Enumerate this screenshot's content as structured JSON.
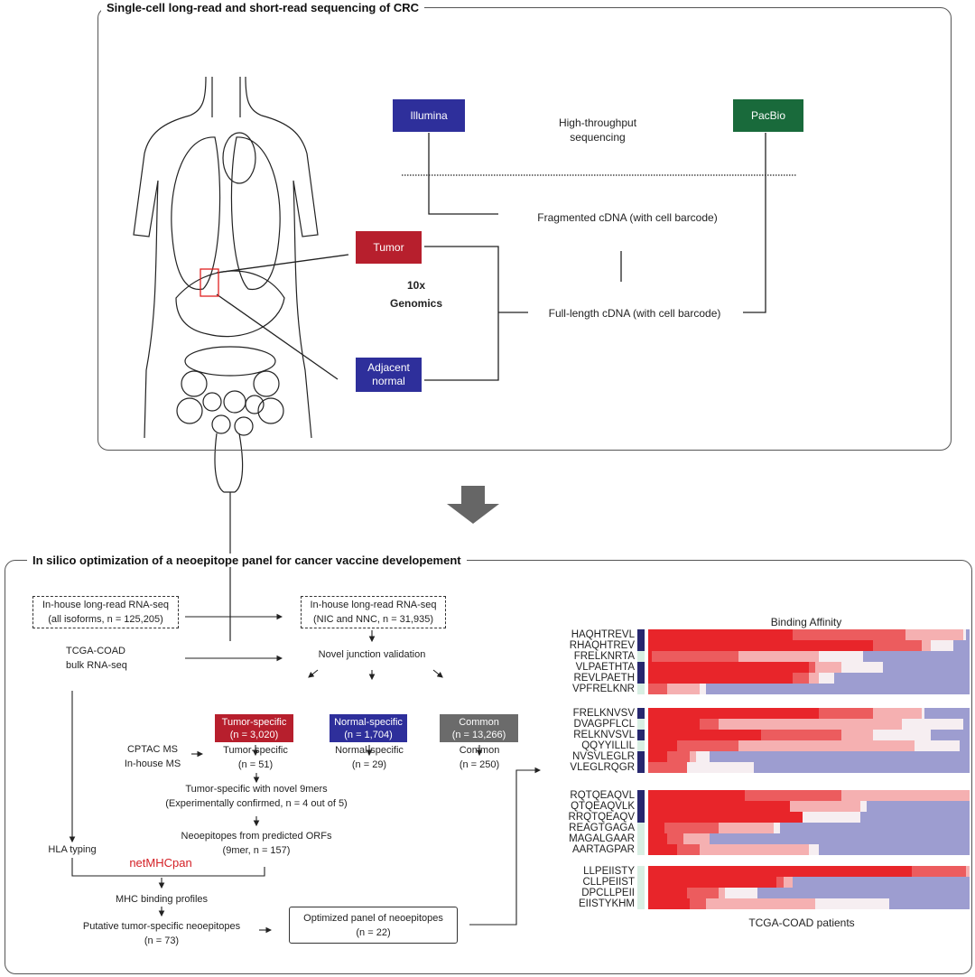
{
  "top_panel": {
    "title": "Single-cell long-read and short-read sequencing of CRC",
    "illumina": "Illumina",
    "pacbio": "PacBio",
    "htp_line1": "High-throughput",
    "htp_line2": "sequencing",
    "fragmented": "Fragmented cDNA (with cell barcode)",
    "fulllength": "Full-length cDNA (with cell barcode)",
    "tumor": "Tumor",
    "adjacent_line1": "Adjacent",
    "adjacent_line2": "normal",
    "genomics_line1": "10x",
    "genomics_line2": "Genomics"
  },
  "bottom_panel": {
    "title": "In silico optimization of a neoepitope panel for cancer vaccine developement",
    "box1": {
      "line1": "In-house long-read RNA-seq",
      "line2": "(all isoforms, n = 125,205)"
    },
    "box2": {
      "line1": "In-house long-read RNA-seq",
      "line2": "(NIC and NNC, n = 31,935)"
    },
    "tcga": {
      "line1": "TCGA-COAD",
      "line2": "bulk RNA-seq"
    },
    "novel_junction": "Novel junction validation",
    "tumor_box": {
      "line1": "Tumor-specific",
      "line2": "(n = 3,020)"
    },
    "normal_box": {
      "line1": "Normal-specific",
      "line2": "(n = 1,704)"
    },
    "common_box": {
      "line1": "Common",
      "line2": "(n = 13,266)"
    },
    "cptac": {
      "line1": "CPTAC MS",
      "line2": "In-house MS"
    },
    "tumor51": {
      "line1": "Tumor-specific",
      "line2": "(n = 51)"
    },
    "normal29": {
      "line1": "Normal-specific",
      "line2": "(n = 29)"
    },
    "common250": {
      "line1": "Common",
      "line2": "(n = 250)"
    },
    "novel9mers": {
      "line1": "Tumor-specific with novel 9mers",
      "line2": "(Experimentally confirmed, n = 4 out of 5)"
    },
    "neoepitopes": {
      "line1": "Neoepitopes from predicted ORFs",
      "line2": "(9mer, n = 157)"
    },
    "hla": "HLA typing",
    "netmhcpan": "netMHCpan",
    "mhc_profiles": "MHC binding profiles",
    "putative": {
      "line1": "Putative tumor-specific neoepitopes",
      "line2": "(n = 73)"
    },
    "optimized": {
      "line1": "Optimized panel of neoepitopes",
      "line2": "(n = 22)"
    }
  },
  "colors": {
    "illumina": "#2e2f9b",
    "pacbio": "#196a3b",
    "tumor": "#b71f2d",
    "normal": "#2e2f9b",
    "common": "#6b6b6b",
    "netmhcpan": "#d42026",
    "indicator_navy": "#27276e",
    "indicator_mint": "#d8efe3",
    "hm_strong": "#e8252a",
    "hm_medium": "#ec5c5e",
    "hm_light": "#f5b0b1",
    "hm_white": "#f6eef1",
    "hm_blue": "#9d9dd0"
  },
  "heatmap": {
    "title": "Binding Affinity",
    "xlabel": "TCGA-COAD patients",
    "segment_order": [
      "strong",
      "medium",
      "light",
      "white",
      "blue"
    ],
    "groups": [
      [
        {
          "peptide": "HAQHTREVL",
          "indicator": "navy",
          "cum": [
            0.45,
            0.8,
            0.98,
            0.99
          ]
        },
        {
          "peptide": "RHAQHTREV",
          "indicator": "navy",
          "cum": [
            0.7,
            0.85,
            0.88,
            0.95
          ]
        },
        {
          "peptide": "FRELKNRTA",
          "indicator": "mint",
          "cum": [
            0.01,
            0.28,
            0.53,
            0.67
          ]
        },
        {
          "peptide": "VLPAETHTA",
          "indicator": "navy",
          "cum": [
            0.5,
            0.52,
            0.6,
            0.73
          ]
        },
        {
          "peptide": "REVLPAETH",
          "indicator": "navy",
          "cum": [
            0.45,
            0.5,
            0.53,
            0.58
          ]
        },
        {
          "peptide": "VPFRELKNR",
          "indicator": "mint",
          "cum": [
            0.0,
            0.06,
            0.16,
            0.18
          ]
        }
      ],
      [
        {
          "peptide": "FRELKNVSV",
          "indicator": "navy",
          "cum": [
            0.53,
            0.7,
            0.85,
            0.86
          ]
        },
        {
          "peptide": "DVAGPFLCL",
          "indicator": "mint",
          "cum": [
            0.16,
            0.22,
            0.79,
            0.98
          ]
        },
        {
          "peptide": "RELKNVSVL",
          "indicator": "navy",
          "cum": [
            0.35,
            0.6,
            0.7,
            0.88
          ]
        },
        {
          "peptide": "QQYYILLIL",
          "indicator": "mint",
          "cum": [
            0.09,
            0.28,
            0.83,
            0.97
          ]
        },
        {
          "peptide": "NVSVLEGLR",
          "indicator": "navy",
          "cum": [
            0.06,
            0.13,
            0.15,
            0.19
          ]
        },
        {
          "peptide": "VLEGLRQGR",
          "indicator": "navy",
          "cum": [
            0.0,
            0.12,
            0.12,
            0.33
          ]
        }
      ],
      [
        {
          "peptide": "RQTQEAQVL",
          "indicator": "navy",
          "cum": [
            0.3,
            0.6,
            1.0,
            1.0
          ]
        },
        {
          "peptide": "QTQEAQVLK",
          "indicator": "navy",
          "cum": [
            0.44,
            0.44,
            0.66,
            0.68
          ]
        },
        {
          "peptide": "RRQTQEAQV",
          "indicator": "navy",
          "cum": [
            0.48,
            0.48,
            0.48,
            0.66
          ]
        },
        {
          "peptide": "REAGTGAGA",
          "indicator": "mint",
          "cum": [
            0.05,
            0.22,
            0.39,
            0.41
          ]
        },
        {
          "peptide": "MAGALGAAR",
          "indicator": "mint",
          "cum": [
            0.06,
            0.11,
            0.19,
            0.19
          ]
        },
        {
          "peptide": "AARTAGPAR",
          "indicator": "mint",
          "cum": [
            0.09,
            0.16,
            0.5,
            0.53
          ]
        }
      ],
      [
        {
          "peptide": "LLPEIISTY",
          "indicator": "mint",
          "cum": [
            0.82,
            0.99,
            1.0,
            1.0
          ]
        },
        {
          "peptide": "CLLPEIIST",
          "indicator": "mint",
          "cum": [
            0.4,
            0.42,
            0.45,
            0.45
          ]
        },
        {
          "peptide": "DPCLLPEII",
          "indicator": "mint",
          "cum": [
            0.12,
            0.22,
            0.24,
            0.34
          ]
        },
        {
          "peptide": "EIISTYKHM",
          "indicator": "mint",
          "cum": [
            0.13,
            0.18,
            0.52,
            0.75
          ]
        }
      ]
    ]
  }
}
